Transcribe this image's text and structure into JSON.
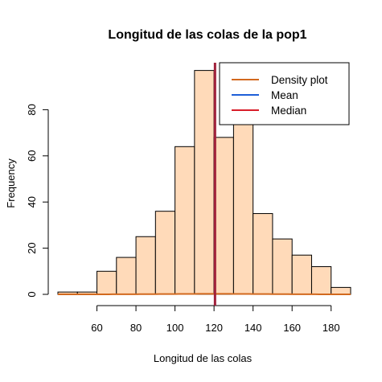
{
  "chart_data": {
    "type": "histogram",
    "title": "Longitud de las colas de la pop1",
    "xlabel": "Longitud de las colas",
    "ylabel": "Frequency",
    "xlim": [
      40,
      190
    ],
    "ylim": [
      0,
      100
    ],
    "x_ticks": [
      60,
      80,
      100,
      120,
      140,
      160,
      180
    ],
    "y_ticks": [
      0,
      20,
      40,
      60,
      80
    ],
    "bins": [
      {
        "from": 40,
        "to": 50,
        "count": 1
      },
      {
        "from": 50,
        "to": 60,
        "count": 1
      },
      {
        "from": 60,
        "to": 70,
        "count": 10
      },
      {
        "from": 70,
        "to": 80,
        "count": 16
      },
      {
        "from": 80,
        "to": 90,
        "count": 25
      },
      {
        "from": 90,
        "to": 100,
        "count": 36
      },
      {
        "from": 100,
        "to": 110,
        "count": 64
      },
      {
        "from": 110,
        "to": 120,
        "count": 97
      },
      {
        "from": 120,
        "to": 130,
        "count": 68
      },
      {
        "from": 130,
        "to": 140,
        "count": 76
      },
      {
        "from": 140,
        "to": 150,
        "count": 35
      },
      {
        "from": 150,
        "to": 160,
        "count": 24
      },
      {
        "from": 160,
        "to": 170,
        "count": 17
      },
      {
        "from": 170,
        "to": 180,
        "count": 12
      },
      {
        "from": 180,
        "to": 190,
        "count": 3
      }
    ],
    "bar_color": "#FFDAB9",
    "density_color": "#D2691E",
    "mean_color": "#1E5FD8",
    "median_color": "#D81E2A",
    "combined_line_color": "#A0203A",
    "mean_value": 120.5,
    "median_value": 120.5,
    "legend": {
      "position": "top-right",
      "entries": [
        {
          "label": "Density plot",
          "color": "#D2691E"
        },
        {
          "label": "Mean",
          "color": "#1E5FD8"
        },
        {
          "label": "Median",
          "color": "#D81E2A"
        }
      ]
    }
  }
}
